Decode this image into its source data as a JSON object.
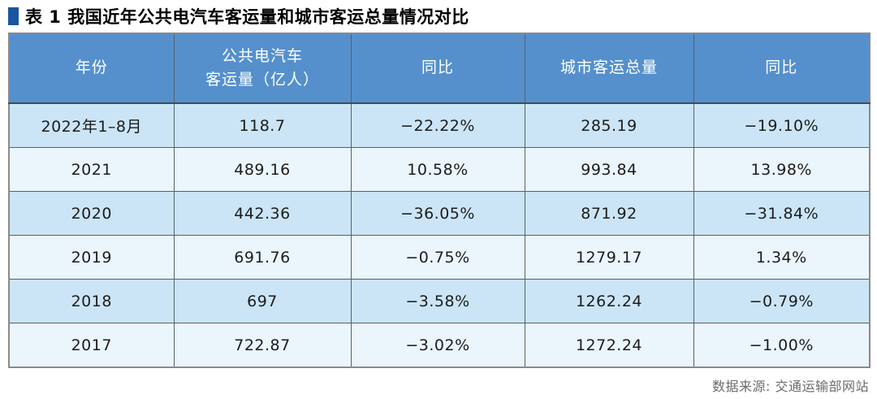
{
  "title": {
    "text": "表 1 我国近年公共电汽车客运量和城市客运总量情况对比"
  },
  "table": {
    "headers": [
      "年份",
      "公共电汽车\n客运量（亿人）",
      "同比",
      "城市客运总量",
      "同比"
    ],
    "rows": [
      [
        "2022年1–8月",
        "118.7",
        "−22.22%",
        "285.19",
        "−19.10%"
      ],
      [
        "2021",
        "489.16",
        "10.58%",
        "993.84",
        "13.98%"
      ],
      [
        "2020",
        "442.36",
        "−36.05%",
        "871.92",
        "−31.84%"
      ],
      [
        "2019",
        "691.76",
        "−0.75%",
        "1279.17",
        "1.34%"
      ],
      [
        "2018",
        "697",
        "−3.58%",
        "1262.24",
        "−0.79%"
      ],
      [
        "2017",
        "722.87",
        "−3.02%",
        "1272.24",
        "−1.00%"
      ]
    ]
  },
  "footer": {
    "source": "数据来源: 交通运输部网站"
  },
  "colors": {
    "header_bg": "#5590cc",
    "row_odd": "#cbe5f6",
    "row_even": "#ebf5fc",
    "title_marker": "#1a55a0"
  }
}
